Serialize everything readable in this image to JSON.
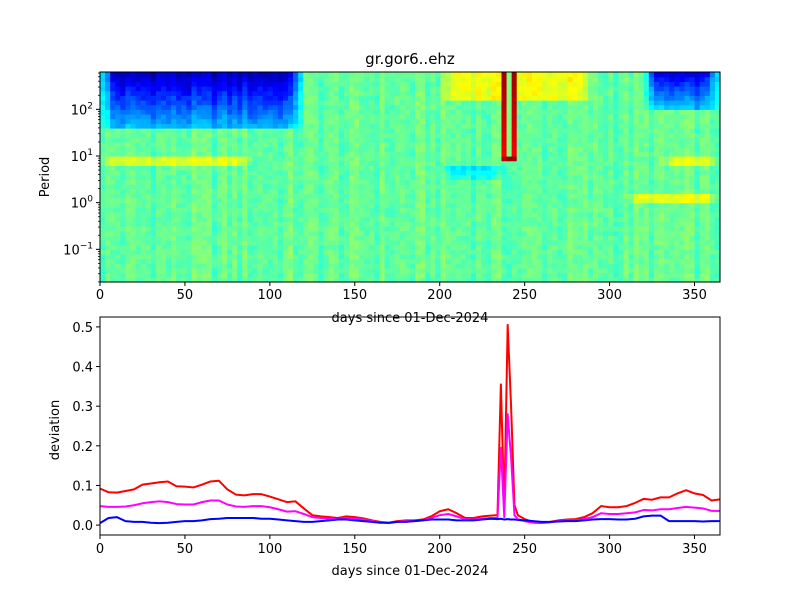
{
  "chart_data": [
    {
      "type": "heatmap",
      "title": "gr.gor6..ehz",
      "xlabel": "days since 01-Dec-2024",
      "ylabel": "Period",
      "xlim": [
        0,
        365
      ],
      "ylim_log10": [
        -1.7,
        2.8
      ],
      "x_ticks": [
        0,
        50,
        100,
        150,
        200,
        250,
        300,
        350
      ],
      "x_tick_labels": [
        "0",
        "50",
        "100",
        "150",
        "200",
        "250",
        "300",
        "350"
      ],
      "y_ticks_log10": [
        -1,
        0,
        1,
        2
      ],
      "y_tick_labels": [
        {
          "base": "10",
          "exp": "−1"
        },
        {
          "base": "10",
          "exp": "0"
        },
        {
          "base": "10",
          "exp": "1"
        },
        {
          "base": "10",
          "exp": "2"
        }
      ],
      "colormap": "jet",
      "features": [
        {
          "kind": "low",
          "x0": 0,
          "x1": 120,
          "y0": 1.6,
          "y1": 2.8,
          "strength": 0.32
        },
        {
          "kind": "low",
          "x0": 320,
          "x1": 365,
          "y0": 2.0,
          "y1": 2.8,
          "strength": 0.3
        },
        {
          "kind": "low",
          "x0": 200,
          "x1": 240,
          "y0": 0.5,
          "y1": 0.8,
          "strength": 0.1
        },
        {
          "kind": "high",
          "x0": 0,
          "x1": 90,
          "y0": 0.8,
          "y1": 1.0,
          "strength": 0.12
        },
        {
          "kind": "high",
          "x0": 330,
          "x1": 365,
          "y0": 0.8,
          "y1": 1.0,
          "strength": 0.12
        },
        {
          "kind": "high",
          "x0": 200,
          "x1": 290,
          "y0": 2.2,
          "y1": 2.8,
          "strength": 0.14
        },
        {
          "kind": "high",
          "x0": 310,
          "x1": 365,
          "y0": 0.0,
          "y1": 0.2,
          "strength": 0.12
        },
        {
          "kind": "spike",
          "x0": 236,
          "x1": 246,
          "y0": 0.9,
          "y1": 2.8,
          "strength": 0.5
        }
      ]
    },
    {
      "type": "line",
      "title": "",
      "xlabel": "days since 01-Dec-2024",
      "ylabel": "deviation",
      "xlim": [
        0,
        365
      ],
      "ylim": [
        -0.025,
        0.525
      ],
      "x_ticks": [
        0,
        50,
        100,
        150,
        200,
        250,
        300,
        350
      ],
      "x_tick_labels": [
        "0",
        "50",
        "100",
        "150",
        "200",
        "250",
        "300",
        "350"
      ],
      "y_ticks": [
        0.0,
        0.1,
        0.2,
        0.3,
        0.4,
        0.5
      ],
      "y_tick_labels": [
        "0.0",
        "0.1",
        "0.2",
        "0.3",
        "0.4",
        "0.5"
      ],
      "x": [
        0,
        5,
        10,
        15,
        20,
        25,
        30,
        35,
        40,
        45,
        50,
        55,
        60,
        65,
        70,
        75,
        80,
        85,
        90,
        95,
        100,
        105,
        110,
        115,
        120,
        125,
        130,
        135,
        140,
        145,
        150,
        155,
        160,
        165,
        170,
        175,
        180,
        185,
        190,
        195,
        200,
        205,
        210,
        215,
        220,
        225,
        230,
        234,
        236,
        238,
        240,
        242,
        244,
        246,
        250,
        255,
        260,
        265,
        270,
        275,
        280,
        285,
        290,
        295,
        300,
        305,
        310,
        315,
        320,
        325,
        330,
        335,
        340,
        345,
        350,
        355,
        360,
        365
      ],
      "series": [
        {
          "name": "red",
          "color": "#ff0000",
          "values": [
            0.092,
            0.083,
            0.082,
            0.086,
            0.09,
            0.102,
            0.105,
            0.108,
            0.11,
            0.098,
            0.097,
            0.095,
            0.102,
            0.11,
            0.112,
            0.09,
            0.077,
            0.075,
            0.078,
            0.078,
            0.072,
            0.065,
            0.058,
            0.06,
            0.042,
            0.025,
            0.022,
            0.02,
            0.018,
            0.022,
            0.02,
            0.017,
            0.012,
            0.008,
            0.006,
            0.01,
            0.012,
            0.012,
            0.014,
            0.022,
            0.035,
            0.04,
            0.03,
            0.018,
            0.018,
            0.022,
            0.024,
            0.025,
            0.355,
            0.04,
            0.505,
            0.3,
            0.05,
            0.025,
            0.015,
            0.008,
            0.006,
            0.008,
            0.012,
            0.014,
            0.015,
            0.02,
            0.03,
            0.048,
            0.045,
            0.045,
            0.048,
            0.056,
            0.066,
            0.064,
            0.07,
            0.07,
            0.08,
            0.088,
            0.08,
            0.076,
            0.062,
            0.065
          ]
        },
        {
          "name": "magenta",
          "color": "#ff00ff",
          "values": [
            0.048,
            0.046,
            0.046,
            0.047,
            0.05,
            0.055,
            0.058,
            0.06,
            0.058,
            0.053,
            0.052,
            0.052,
            0.058,
            0.062,
            0.062,
            0.052,
            0.047,
            0.046,
            0.048,
            0.048,
            0.045,
            0.04,
            0.034,
            0.035,
            0.028,
            0.02,
            0.018,
            0.016,
            0.015,
            0.018,
            0.016,
            0.014,
            0.01,
            0.007,
            0.005,
            0.008,
            0.01,
            0.01,
            0.012,
            0.018,
            0.025,
            0.028,
            0.022,
            0.015,
            0.014,
            0.016,
            0.018,
            0.018,
            0.195,
            0.02,
            0.28,
            0.17,
            0.025,
            0.015,
            0.01,
            0.006,
            0.005,
            0.007,
            0.01,
            0.012,
            0.012,
            0.015,
            0.02,
            0.03,
            0.028,
            0.028,
            0.03,
            0.032,
            0.038,
            0.037,
            0.04,
            0.04,
            0.043,
            0.046,
            0.044,
            0.042,
            0.036,
            0.036
          ]
        },
        {
          "name": "blue",
          "color": "#0000ff",
          "values": [
            0.005,
            0.018,
            0.02,
            0.01,
            0.008,
            0.008,
            0.006,
            0.005,
            0.006,
            0.008,
            0.01,
            0.01,
            0.012,
            0.015,
            0.016,
            0.018,
            0.018,
            0.018,
            0.018,
            0.016,
            0.016,
            0.014,
            0.012,
            0.01,
            0.008,
            0.008,
            0.01,
            0.012,
            0.014,
            0.014,
            0.012,
            0.01,
            0.008,
            0.006,
            0.006,
            0.008,
            0.008,
            0.01,
            0.012,
            0.014,
            0.014,
            0.014,
            0.012,
            0.012,
            0.012,
            0.014,
            0.016,
            0.015,
            0.016,
            0.014,
            0.015,
            0.014,
            0.014,
            0.013,
            0.012,
            0.01,
            0.008,
            0.008,
            0.009,
            0.01,
            0.01,
            0.012,
            0.014,
            0.015,
            0.015,
            0.014,
            0.014,
            0.016,
            0.022,
            0.024,
            0.024,
            0.01,
            0.01,
            0.01,
            0.01,
            0.009,
            0.01,
            0.01
          ]
        }
      ]
    }
  ]
}
